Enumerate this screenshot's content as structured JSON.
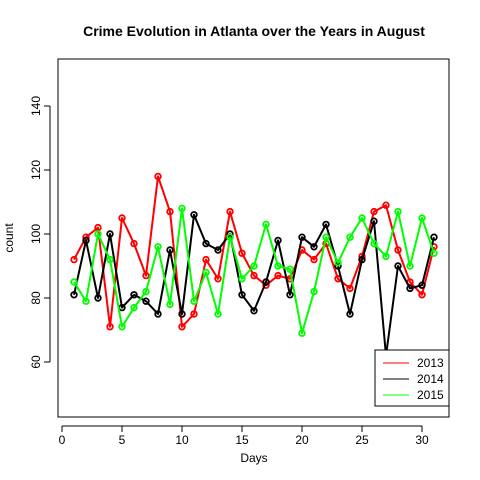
{
  "chart_data": {
    "type": "line",
    "title": "Crime Evolution in Atlanta over the Years in August",
    "xlabel": "Days",
    "ylabel": "count",
    "xlim": [
      0,
      32
    ],
    "ylim": [
      45,
      155
    ],
    "x_ticks": [
      0,
      5,
      10,
      15,
      20,
      25,
      30
    ],
    "y_ticks": [
      60,
      80,
      100,
      120,
      140
    ],
    "grid": false,
    "legend_position": "bottom-right",
    "x": [
      1,
      2,
      3,
      4,
      5,
      6,
      7,
      8,
      9,
      10,
      11,
      12,
      13,
      14,
      15,
      16,
      17,
      18,
      19,
      20,
      21,
      22,
      23,
      24,
      25,
      26,
      27,
      28,
      29,
      30,
      31
    ],
    "series": [
      {
        "name": "2013",
        "color": "#ff0000",
        "values": [
          92,
          99,
          102,
          71,
          105,
          97,
          87,
          118,
          107,
          71,
          75,
          92,
          86,
          107,
          94,
          87,
          84,
          87,
          86,
          95,
          92,
          97,
          86,
          83,
          93,
          107,
          109,
          95,
          85,
          81,
          96
        ]
      },
      {
        "name": "2014",
        "color": "#000000",
        "values": [
          81,
          98,
          80,
          100,
          77,
          81,
          79,
          75,
          95,
          75,
          106,
          97,
          95,
          100,
          81,
          76,
          85,
          98,
          81,
          99,
          96,
          103,
          90,
          75,
          92,
          104,
          62,
          90,
          83,
          84,
          99
        ]
      },
      {
        "name": "2015",
        "color": "#00ff00",
        "values": [
          85,
          79,
          100,
          92,
          71,
          77,
          82,
          96,
          78,
          108,
          79,
          88,
          75,
          99,
          86,
          90,
          103,
          90,
          89,
          69,
          82,
          99,
          91,
          99,
          105,
          97,
          93,
          107,
          90,
          105,
          94
        ]
      }
    ]
  }
}
